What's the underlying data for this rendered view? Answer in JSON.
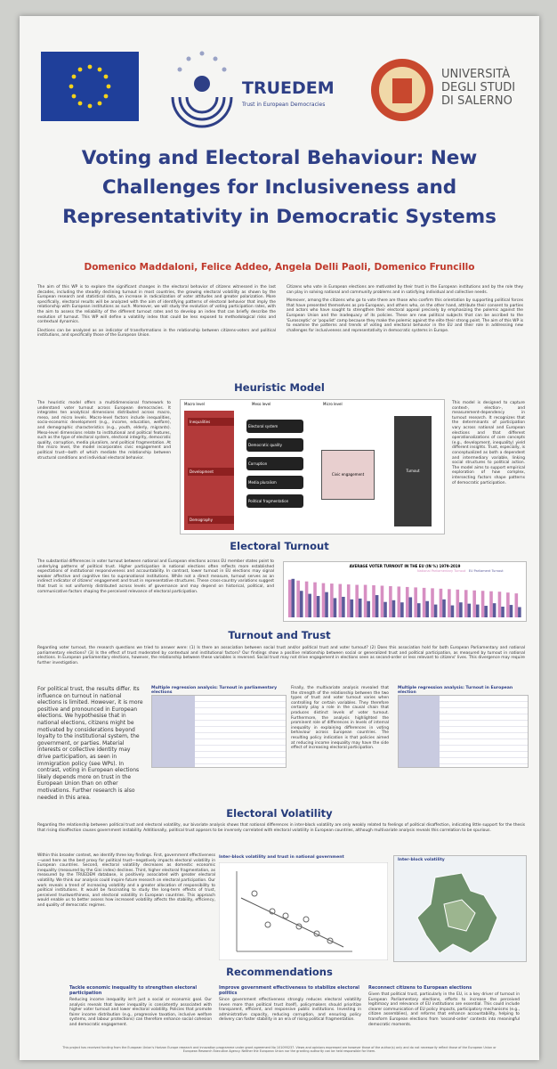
{
  "header": {
    "truedem": "TRUEDEM",
    "truedem_tagline": "Trust in European Democracies",
    "university": [
      "UNIVERSITÀ",
      "DEGLI STUDI",
      "DI SALERNO"
    ]
  },
  "title": [
    "Voting and Electoral Behaviour: New",
    "Challenges for Inclusiveness and",
    "Representativity in Democratic Systems"
  ],
  "authors": "Domenico Maddaloni, Felice Addeo, Angela Delli Paoli, Domenico Fruncillo",
  "intro": {
    "left": [
      "The aim of this WP is to explore the significant changes in the electoral behavior of citizens witnessed in the last decades, including the steadily declining turnout in most countries, the growing electoral volatility as shown by the European research and statistical data, an increase in radicalization of voter attitudes and greater polarization. More specifically, electoral results will be analyzed with the aim of identifying patterns of electoral behavior that imply the relationship with European institutions as such. Moreover, we will study the evolution of voting participation rates, with the aim to assess the reliability of the different turnout rates and to develop an index that can briefly describe the evolution of turnout. This WP will define a volatility index that could be less exposed to methodological risks and contextual dynamics.",
      "Elections can be analyzed as an indicator of transformations in the relationship between citizens-voters and political institutions, and specifically those of the European Union."
    ],
    "right": [
      "Citizens who vote in European elections are motivated by their trust in the European institutions and by the role they can play in solving national and community problems and in satisfying individual and collective needs.",
      "Moreover, among the citizens who go to vote there are those who confirm this orientation by supporting political forces that have presented themselves as pro-European, and others who, on the other hand, attribute their consent to parties and actors who have sought to strengthen their electoral appeal precisely by emphasizing the polemic against the European Union and the inadequacy of its policies. These are new political subjects that can be ascribed to the 'Eurosceptic' or 'populist' camp because they make the polemic against the elite their strong point. The aim of this WP is to examine the patterns and trends of voting and electoral behavior in the EU and their role in addressing new challenges for inclusiveness and representativity in democratic systems in Europe."
    ]
  },
  "heuristic": {
    "heading": "Heuristic Model",
    "left": "The heuristic model offers a multidimensional framework to understand voter turnout across European democracies. It integrates ten analytical dimensions distributed across macro, meso, and micro levels. Macro-level factors include inequalities, socio-economic development (e.g., income, education, welfare), and demographic characteristics (e.g., youth, elderly, migrants). Meso-level dimensions relate to institutional and political features, such as the type of electoral system, electoral integrity, democratic quality, corruption, media pluralism, and political fragmentation. At the micro level, the model incorporates civic engagement and political trust—both of which mediate the relationship between structural conditions and individual electoral behavior.",
    "right": "This model is designed to capture context-, election-, and measurement-dependency in turnout research. It recognizes that the determinants of participation vary across national and European elections and that different operationalizations of core concepts (e.g., development, inequality) yield different insights. Trust, especially, is conceptualized as both a dependent and intermediary variable, linking social structures to political action. The model aims to support empirical exploration of how complex, intersecting factors shape patterns of democratic participation.",
    "levels": [
      "Macro level",
      "Meso level",
      "Micro level"
    ],
    "macro": [
      "Inequalities",
      "Development",
      "Demography"
    ],
    "meso": [
      "Electoral system",
      "Democratic quality",
      "Corruption",
      "Media pluralism",
      "Political fragmentation"
    ],
    "micro": "Civic engagement",
    "outcome": "Turnout"
  },
  "turnout": {
    "heading": "Electoral Turnout",
    "text": "The substantial differences in voter turnout between national and European elections across EU member states point to underlying patterns of political trust. Higher participation in national elections often reflects more established expectations of institutional responsiveness and accountability. In contrast, lower turnout in EU elections may signal weaker affective and cognitive ties to supranational institutions. While not a direct measure, turnout serves as an indirect indicator of citizens' engagement and trust in representative structures. These cross-country variations suggest that trust is not uniformly distributed across levels of governance and may depend on historical, political, and communicative factors shaping the perceived relevance of electoral participation.",
    "chart": {
      "type": "bar",
      "title": "AVERAGE VOTER TURNOUT IN THE EU (IN %) 1979-2019",
      "series": [
        {
          "name": "National Parliamentary Turnout",
          "color": "#d78fc2",
          "values": [
            88,
            86,
            84,
            82,
            80,
            79,
            78,
            77,
            76,
            76,
            75,
            74,
            73,
            72,
            71,
            70,
            69,
            68,
            67,
            66,
            65,
            64,
            63,
            62,
            61,
            60,
            58,
            56
          ]
        },
        {
          "name": "EU Parliament Turnout",
          "color": "#5b5b9a",
          "values": [
            90,
            62,
            55,
            50,
            59,
            45,
            48,
            42,
            44,
            38,
            52,
            36,
            40,
            35,
            47,
            33,
            38,
            30,
            42,
            28,
            35,
            32,
            30,
            27,
            33,
            25,
            29,
            24
          ]
        }
      ],
      "ylim": [
        0,
        100
      ]
    }
  },
  "trust": {
    "heading": "Turnout and Trust",
    "intro": "Regarding voter turnout, the research questions we tried to answer were: (1) Is there an association between social trust and/or political trust and voter turnout? (2) Does this association hold for both European Parliamentary and national parliamentary elections? (3) Is the effect of trust moderated by contextual and institutional factors? Our findings show a positive relationship between social or generalized trust and political participation, as measured by turnout in national elections. In European parliamentary elections, however, the relationship between these variables is reversed. Social trust may not drive engagement in elections seen as second-order or less relevant to citizens' lives. This divergence may require further investigation.",
    "left": "For political trust, the results differ. Its influence on turnout in national elections is limited. However, it is more positive and pronounced in European elections. We hypothesise that in national elections, citizens might be motivated by considerations beyond loyalty to the institutional system, the government, or parties. Material interests or collective identity may drive participation, as seen in immigration policy (see WPs). In contrast, voting in European elections likely depends more on trust in the European Union than on other motivations. Further research is also needed in this area.",
    "table1": "Multiple regression analysis: Turnout in parliamentary elections",
    "middle": "Finally, the multivariate analysis revealed that the strength of the relationship between the two types of trust and voter turnout varies when controlling for certain variables. They therefore certainly play a role in the causal chain that produces distinct levels of voter turnout. Furthermore, the analysis highlighted the prominent role of differences in levels of internal inequality in explaining differences in voting behaviour across European countries. The resulting policy indication is that policies aimed at reducing income inequality may have the side effect of increasing electoral participation.",
    "table2": "Multiple regression analysis: Turnout in European election"
  },
  "volatility": {
    "heading": "Electoral Volatility",
    "intro": "Regarding the relationship between political trust and electoral volatility, our bivariate analysis shows that national differences in inter-block volatility are only weakly related to feelings of political disaffection, indicating little support for the thesis that rising disaffection causes government instability. Additionally, political trust appears to be inversely correlated with electoral volatility in European countries, although multivariate analysis reveals this correlation to be spurious.",
    "left": "Within this broader context, we identify three key findings. First, government effectiveness—used here as the best proxy for political trust—negatively impacts electoral volatility in European countries. Second, electoral volatility decreases as domestic economic inequality (measured by the Gini index) declines. Third, higher electoral fragmentation, as measured by the TRUEDEM database, is positively associated with greater electoral volatility. We think our analysis could inspire future research on electoral participation. Our work reveals a trend of increasing volatility and a greater allocation of responsibility to political institutions. It would be fascinating to study the long-term effects of trust, perceived trustworthiness, and electoral volatility in European countries. This approach would enable us to better assess how increased volatility affects the stability, efficiency, and quality of democratic regimes.",
    "chart_title": "Inter-block volatility and trust in national government",
    "map_title": "Inter-block volatility"
  },
  "recommendations": {
    "heading": "Recommendations",
    "columns": [
      {
        "title": "Tackle economic inequality to strengthen electoral participation",
        "text": "Reducing income inequality isn't just a social or economic goal. Our analysis reveals that lower inequality is consistently associated with higher voter turnout and lower electoral volatility. Policies that promote fairer income distribution (e.g., progressive taxation, inclusive welfare systems, and labour protections) can therefore enhance social cohesion and democratic engagement."
      },
      {
        "title": "Improve government effectiveness to stabilize electoral politics",
        "text": "Since government effectiveness strongly reduces electoral volatility (even more than political trust itself), policymakers should prioritize transparent, efficient, and responsive public institutions. Investing in administrative capacity, reducing corruption, and ensuring policy delivery can foster stability in an era of rising political fragmentation."
      },
      {
        "title": "Reconnect citizens to European elections",
        "text": "Given that political trust, particularly in the EU, is a key driver of turnout in European Parliamentary elections, efforts to increase the perceived legitimacy and relevance of EU institutions are essential. This could include clearer communication of EU policy impacts, participatory mechanisms (e.g., citizen assemblies), and reforms that enhance accountability, helping to transform European elections from 'second-order' contests into meaningful democratic moments."
      }
    ]
  },
  "footer": "This project has received funding from the European Union's Horizon Europe research and innovation programme under grant agreement No 101095237. Views and opinions expressed are however those of the author(s) only and do not necessarily reflect those of the European Union or European Research Executive Agency. Neither the European Union nor the granting authority can be held responsible for them."
}
